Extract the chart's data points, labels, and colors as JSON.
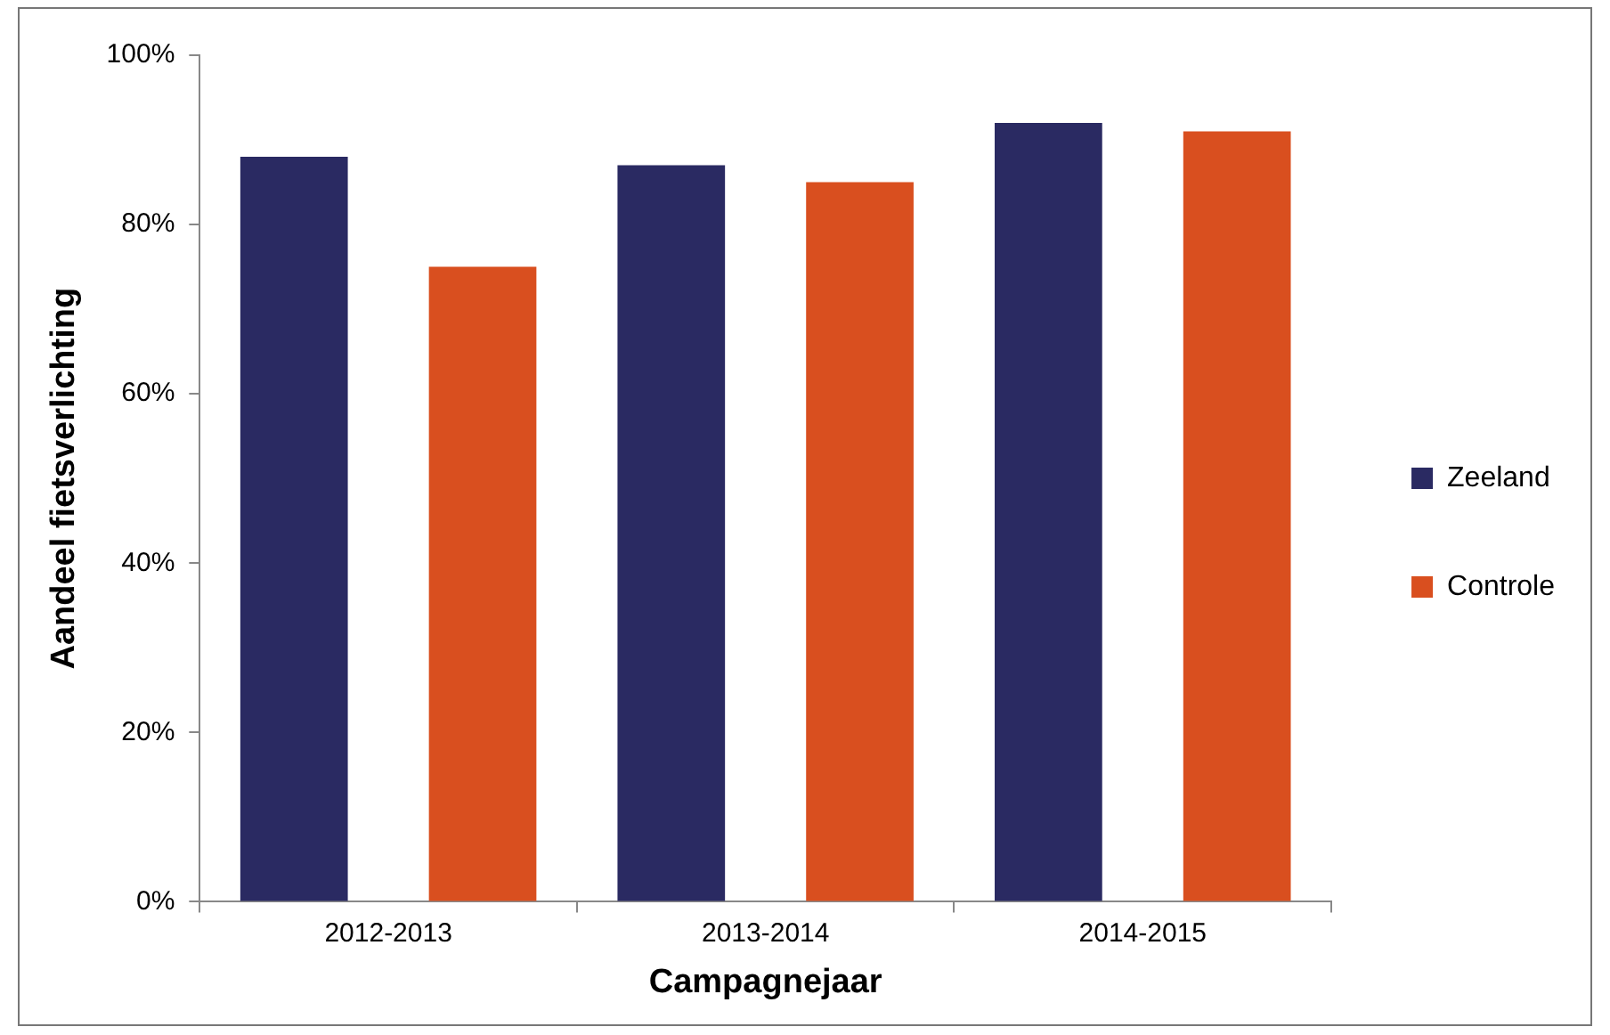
{
  "chart_data": {
    "type": "bar",
    "xlabel": "Campagnejaar",
    "ylabel": "Aandeel fietsverlichting",
    "categories": [
      "2012-2013",
      "2013-2014",
      "2014-2015"
    ],
    "series": [
      {
        "name": "Zeeland",
        "color": "#2a2a62",
        "values": [
          88,
          87,
          92
        ]
      },
      {
        "name": "Controle",
        "color": "#d94f1f",
        "values": [
          75,
          85,
          91
        ]
      }
    ],
    "ylim": [
      0,
      100
    ],
    "yticks": [
      {
        "value": 0,
        "label": "0%"
      },
      {
        "value": 20,
        "label": "20%"
      },
      {
        "value": 40,
        "label": "40%"
      },
      {
        "value": 60,
        "label": "60%"
      },
      {
        "value": 80,
        "label": "80%"
      },
      {
        "value": 100,
        "label": "100%"
      }
    ],
    "grid": false,
    "legend": "right"
  }
}
